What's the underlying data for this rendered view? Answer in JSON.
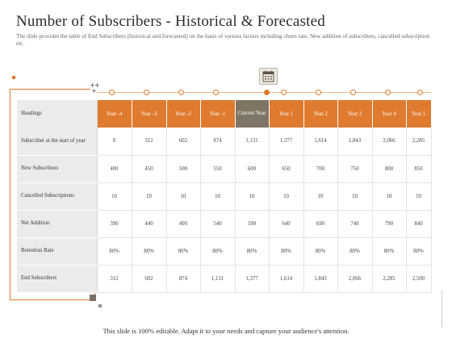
{
  "title": "Number of Subscribers - Historical & Forecasted",
  "subtitle": "The slide provides the table of End Subscribers (historical and forecasted) on the basis of various factors including churn rate, New addition of subscribers, cancelled subscription etc.",
  "icons": {
    "calendar": "calendar-icon"
  },
  "colors": {
    "accent": "#e07a2e",
    "current": "#7f7565",
    "rowhead_bg": "#ebebeb"
  },
  "table": {
    "header_label": "Headings",
    "columns": [
      "Year -4",
      "Year -3",
      "Year -2",
      "Year -1",
      "Current Year",
      "Year 1",
      "Year 2",
      "Year 3",
      "Year 4",
      "Year 5"
    ],
    "rows": [
      {
        "label": "Subscriber at the start of year",
        "values": [
          "0",
          "312",
          "602",
          "874",
          "1,131",
          "1,377",
          "1,614",
          "1,843",
          "2,066",
          "2,285"
        ]
      },
      {
        "label": "New Subscribers",
        "values": [
          "400",
          "450",
          "500",
          "550",
          "600",
          "650",
          "700",
          "750",
          "800",
          "850"
        ]
      },
      {
        "label": "Cancelled Subscriptions",
        "values": [
          "10",
          "10",
          "10",
          "10",
          "10",
          "10",
          "10",
          "10",
          "10",
          "10"
        ]
      },
      {
        "label": "Net Addition",
        "values": [
          "390",
          "440",
          "490",
          "540",
          "590",
          "640",
          "690",
          "740",
          "790",
          "840"
        ]
      },
      {
        "label": "Retention Rate",
        "values": [
          "80%",
          "80%",
          "80%",
          "80%",
          "80%",
          "80%",
          "80%",
          "80%",
          "80%",
          "80%"
        ]
      },
      {
        "label": "End Subscribers",
        "values": [
          "312",
          "602",
          "874",
          "1,131",
          "1,377",
          "1,614",
          "1,843",
          "2,066",
          "2,285",
          "2,500"
        ]
      }
    ]
  },
  "footer": "This slide is 100% editable. Adapt it to your needs and capture your audience's attention."
}
